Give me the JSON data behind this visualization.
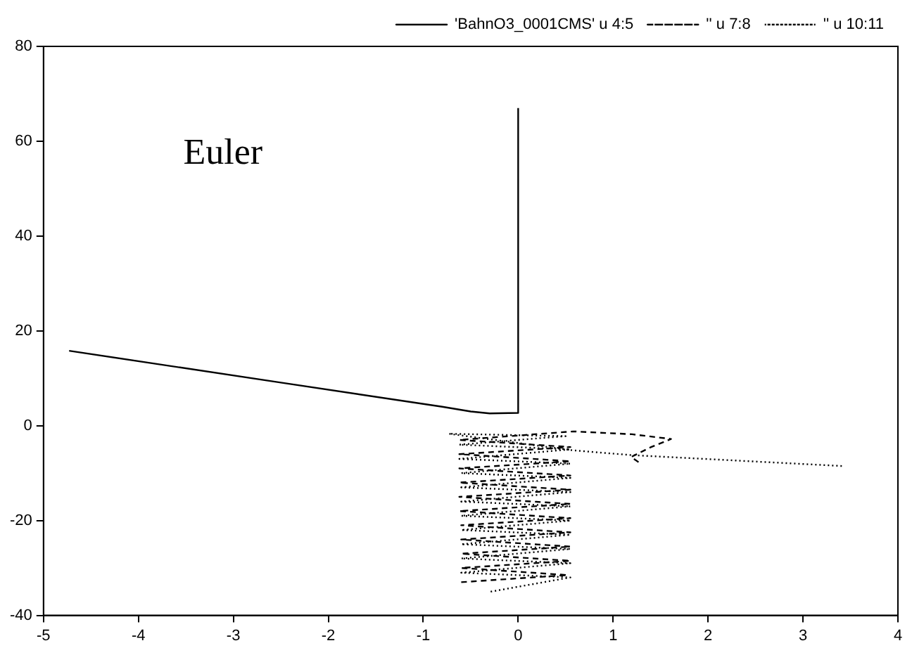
{
  "chart_data": {
    "type": "line",
    "annotations": [
      "Euler"
    ],
    "xlim": [
      -5,
      4
    ],
    "xticks": [
      -5,
      -4,
      -3,
      -2,
      -1,
      0,
      1,
      2,
      3,
      4
    ],
    "ylim": [
      -40,
      80
    ],
    "yticks": [
      -40,
      -20,
      0,
      20,
      40,
      60,
      80
    ],
    "grid": false,
    "legend": "top right",
    "marker": "none",
    "series": [
      {
        "name": "'BahnO3_0001CMS' u 4:5",
        "color": "#000000",
        "line_style": "solid",
        "x": [
          -4.73,
          -2.5,
          -0.8,
          -0.5,
          -0.3,
          0,
          0
        ],
        "values": [
          15.8,
          9.1,
          4,
          3,
          2.6,
          2.7,
          67
        ]
      },
      {
        "name": "'' u 7:8",
        "color": "#000000",
        "line_style": "dashed",
        "x": [
          -0.6,
          0.52,
          -0.6,
          0.55,
          -0.6,
          0.55,
          -0.6,
          0.55,
          -0.6,
          0.55,
          -0.62,
          0.55,
          -0.62,
          0.55,
          -0.62,
          0.55,
          -0.62,
          0.55,
          -0.62,
          0.55,
          -0.62,
          0.58,
          1.2,
          1.61,
          1.4,
          1.19,
          1.29
        ],
        "values": [
          -33,
          -31.5,
          -30,
          -28.5,
          -27,
          -25.5,
          -24,
          -22.5,
          -21,
          -19.5,
          -18,
          -16.5,
          -15,
          -13.5,
          -12,
          -10.5,
          -9,
          -7.5,
          -6,
          -4.5,
          -3,
          -1.2,
          -1.8,
          -2.8,
          -4.5,
          -6.6,
          -8
        ]
      },
      {
        "name": "'' u 10:11",
        "color": "#000000",
        "line_style": "dotted",
        "x": [
          -0.29,
          0.55,
          -0.6,
          0.55,
          -0.6,
          0.55,
          -0.6,
          0.55,
          -0.6,
          0.55,
          -0.6,
          0.55,
          -0.6,
          0.55,
          -0.6,
          0.55,
          -0.6,
          0.55,
          -0.62,
          0.55,
          -0.62,
          0.5,
          -0.73,
          0.58,
          1.19,
          3.41
        ],
        "values": [
          -35,
          -32,
          -31,
          -29,
          -28,
          -26,
          -25,
          -23,
          -22,
          -20,
          -19,
          -17,
          -16,
          -14,
          -13,
          -11,
          -10,
          -8,
          -7,
          -5,
          -4,
          -2.2,
          -1.7,
          -5.2,
          -6.2,
          -8.5
        ]
      }
    ]
  }
}
